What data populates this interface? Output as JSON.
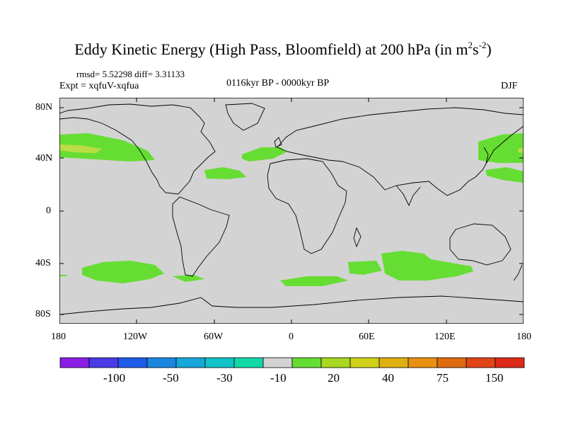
{
  "title": {
    "main": "Eddy Kinetic Energy (High Pass, Bloomfield) at 200 hPa (in m",
    "sup1": "2",
    "mid": "s",
    "sup2": "-2",
    "end": ")"
  },
  "stats": "rmsd= 5.52298 diff= 3.31133",
  "experiment": "Expt = xqfuV-xqfua",
  "period": "0116kyr BP - 0000kyr BP",
  "season": "DJF",
  "map": {
    "background_color": "#d3d3d3",
    "positive_color": "#66dd33",
    "strong_color": "#bbdd44",
    "lat_labels": [
      "80N",
      "40N",
      "0",
      "40S",
      "80S"
    ],
    "lon_labels": [
      "180",
      "120W",
      "60W",
      "0",
      "60E",
      "120E",
      "180"
    ]
  },
  "colorbar": {
    "colors": [
      "#8a1ee6",
      "#4b3ae8",
      "#1e5be8",
      "#1a86e0",
      "#15a8d8",
      "#10c4c8",
      "#12d8a8",
      "#d3d3d3",
      "#66dd33",
      "#a8d820",
      "#d0d018",
      "#e0b010",
      "#e89010",
      "#e06a10",
      "#e04418",
      "#dd2a1a"
    ],
    "labels": [
      "-100",
      "-50",
      "-30",
      "-10",
      "20",
      "40",
      "75",
      "150"
    ]
  }
}
